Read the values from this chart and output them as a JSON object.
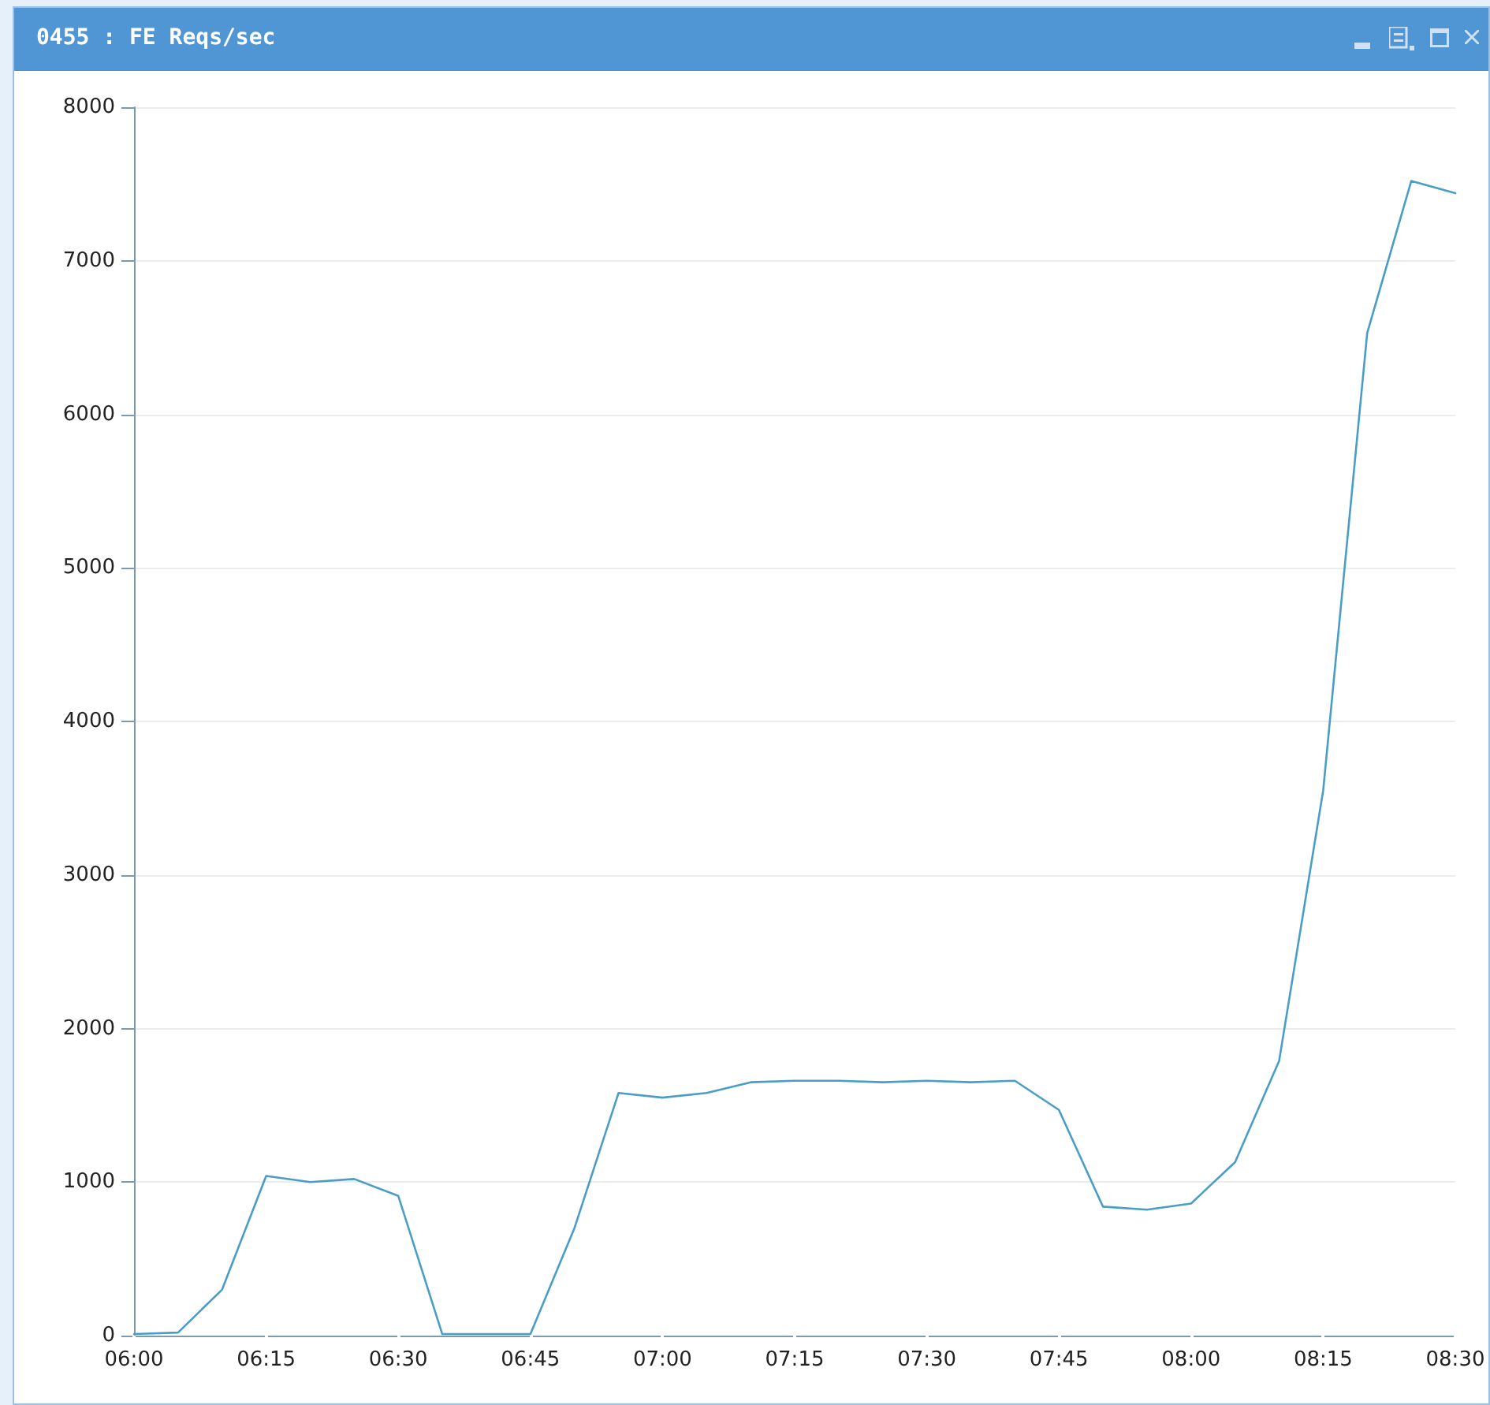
{
  "chart_data": {
    "type": "line",
    "title": "0455 : FE Reqs/sec",
    "x": [
      6,
      6.0833,
      6.1667,
      6.25,
      6.3333,
      6.4167,
      6.5,
      6.5833,
      6.6667,
      6.75,
      6.8333,
      6.9167,
      7,
      7.0833,
      7.1667,
      7.25,
      7.3333,
      7.4167,
      7.5,
      7.5833,
      7.6667,
      7.75,
      7.8333,
      7.9167,
      8,
      8.0833,
      8.1667,
      8.25,
      8.3333,
      8.4167,
      8.5
    ],
    "series": [
      {
        "color": "#4a9ec6",
        "values": [
          10,
          20,
          300,
          1040,
          1000,
          1020,
          910,
          10,
          10,
          10,
          700,
          1580,
          1550,
          1580,
          1650,
          1660,
          1660,
          1650,
          1660,
          1650,
          1660,
          1470,
          840,
          820,
          860,
          1130,
          1790,
          3550,
          6530,
          7520,
          7440
        ]
      }
    ],
    "xlim": [
      6,
      8.5
    ],
    "xticks": [
      {
        "value": 6,
        "label": "06:00"
      },
      {
        "value": 6.25,
        "label": "06:15"
      },
      {
        "value": 6.5,
        "label": "06:30"
      },
      {
        "value": 6.75,
        "label": "06:45"
      },
      {
        "value": 7,
        "label": "07:00"
      },
      {
        "value": 7.25,
        "label": "07:15"
      },
      {
        "value": 7.5,
        "label": "07:30"
      },
      {
        "value": 7.75,
        "label": "07:45"
      },
      {
        "value": 8,
        "label": "08:00"
      },
      {
        "value": 8.25,
        "label": "08:15"
      },
      {
        "value": 8.5,
        "label": "08:30"
      }
    ],
    "ylim": [
      0,
      8000
    ],
    "yticks": [
      0,
      1000,
      2000,
      3000,
      4000,
      5000,
      6000,
      7000,
      8000
    ],
    "grid": "y",
    "marker": "none",
    "line_style": "solid"
  }
}
